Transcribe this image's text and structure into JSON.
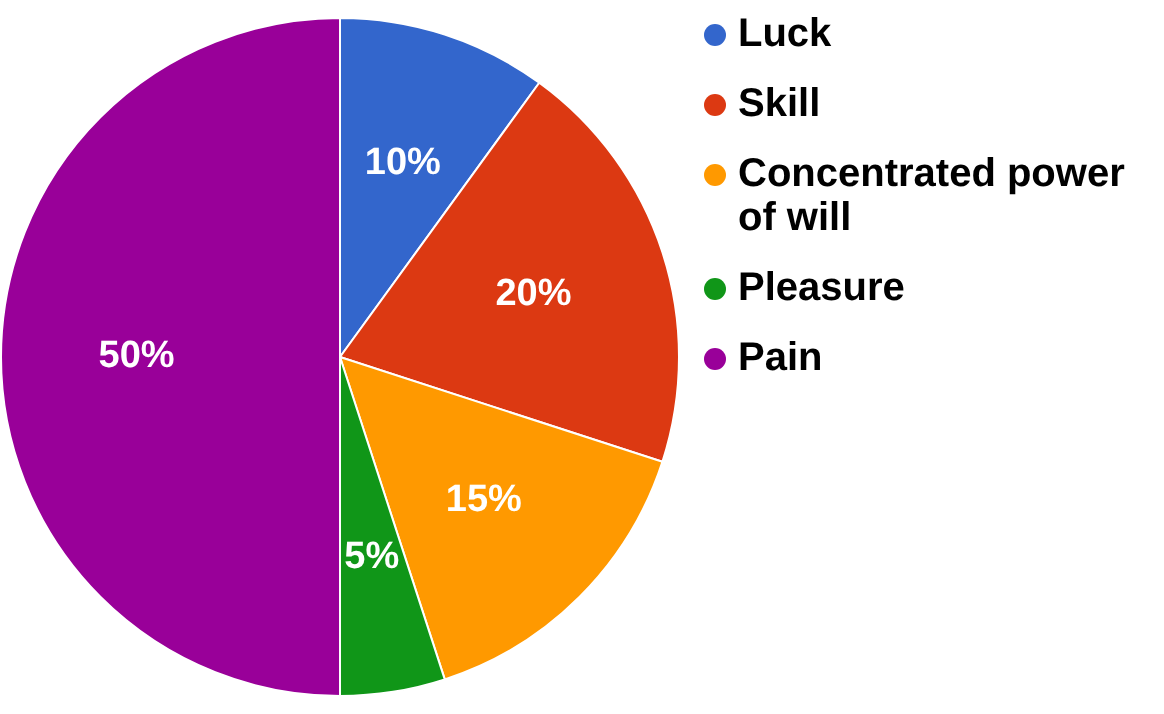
{
  "chart_data": {
    "type": "pie",
    "categories": [
      "Luck",
      "Skill",
      "Concentrated power of will",
      "Pleasure",
      "Pain"
    ],
    "values": [
      10,
      20,
      15,
      5,
      50
    ],
    "colors": [
      "#3366cc",
      "#dc3912",
      "#ff9900",
      "#109618",
      "#990099"
    ],
    "value_labels": [
      "10%",
      "20%",
      "15%",
      "5%",
      "50%"
    ],
    "legend": "right"
  }
}
